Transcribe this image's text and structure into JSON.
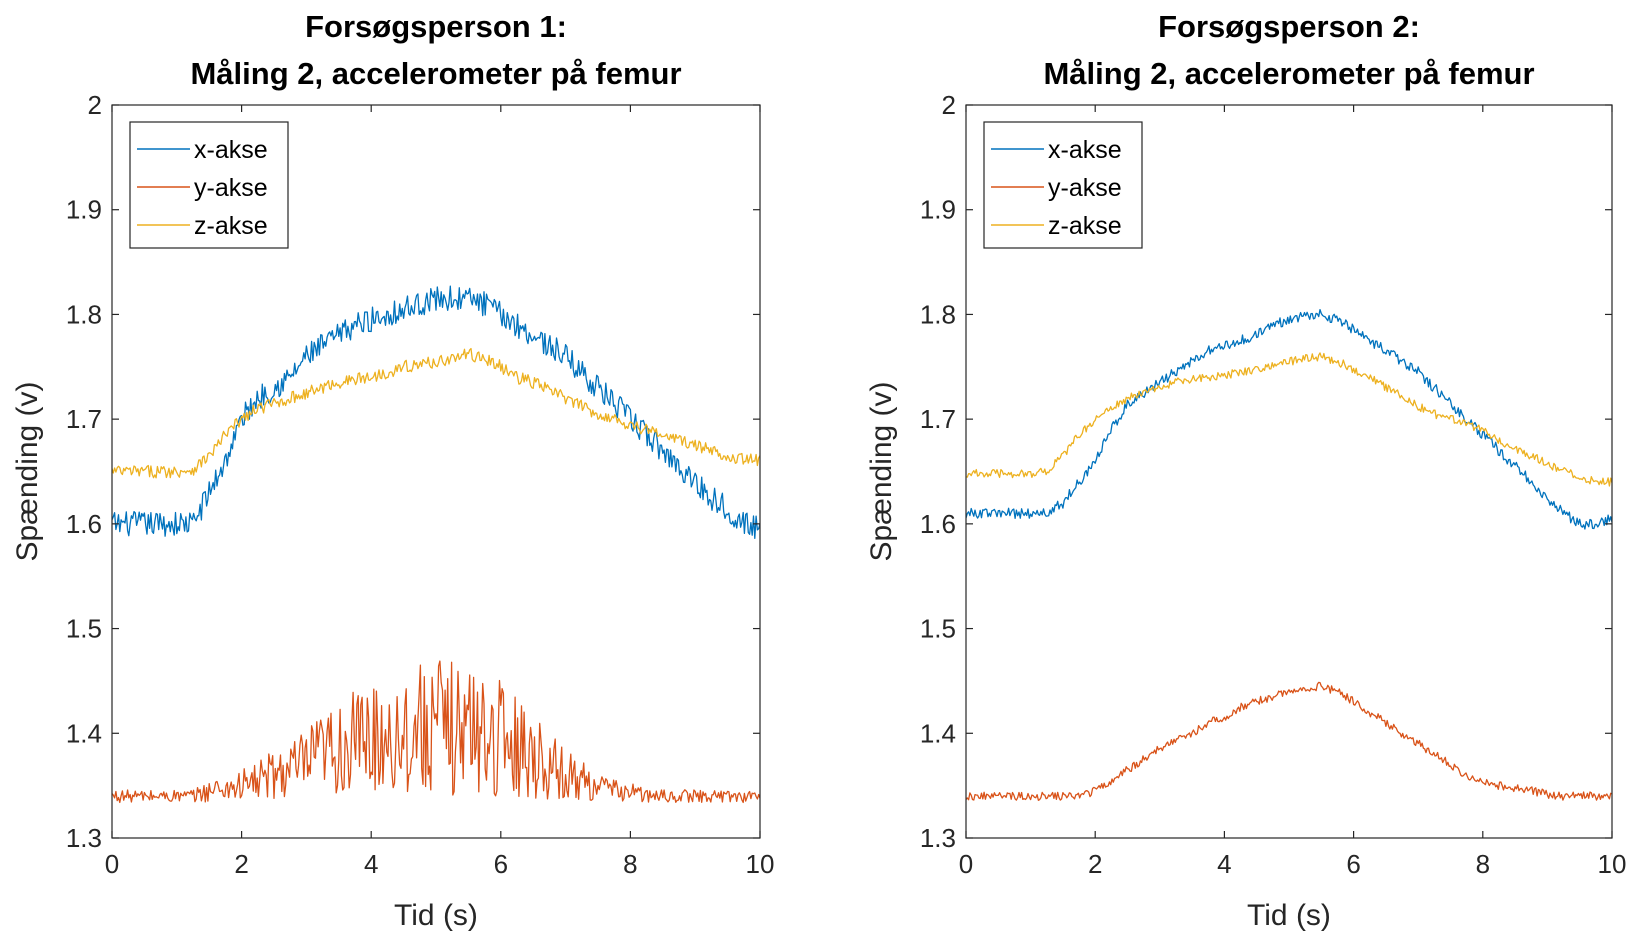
{
  "chart_data": [
    {
      "type": "line",
      "title": [
        "Forsøgsperson 1:",
        "Måling 2, accelerometer på femur"
      ],
      "xlabel": "Tid (s)",
      "ylabel": "Spænding (v)",
      "xlim": [
        0,
        10
      ],
      "ylim": [
        1.3,
        2
      ],
      "xticks": [
        0,
        2,
        4,
        6,
        8,
        10
      ],
      "yticks": [
        1.3,
        1.4,
        1.5,
        1.6,
        1.7,
        1.8,
        1.9,
        2
      ],
      "grid": false,
      "legend": "top-left",
      "x": [
        0,
        0.25,
        0.5,
        0.75,
        1,
        1.25,
        1.5,
        1.75,
        2,
        2.25,
        2.5,
        2.75,
        3,
        3.25,
        3.5,
        3.75,
        4,
        4.25,
        4.5,
        4.75,
        5,
        5.25,
        5.5,
        5.75,
        6,
        6.25,
        6.5,
        6.75,
        7,
        7.25,
        7.5,
        7.75,
        8,
        8.25,
        8.5,
        8.75,
        9,
        9.25,
        9.5,
        9.75,
        10
      ],
      "series": [
        {
          "name": "x-akse",
          "color": "#0072BD",
          "noise": 0.012,
          "values": [
            1.6,
            1.6,
            1.6,
            1.6,
            1.6,
            1.6,
            1.63,
            1.66,
            1.7,
            1.72,
            1.73,
            1.74,
            1.76,
            1.77,
            1.78,
            1.79,
            1.795,
            1.8,
            1.805,
            1.81,
            1.815,
            1.815,
            1.815,
            1.81,
            1.8,
            1.79,
            1.78,
            1.77,
            1.76,
            1.745,
            1.73,
            1.715,
            1.7,
            1.685,
            1.67,
            1.655,
            1.64,
            1.625,
            1.615,
            1.6,
            1.595
          ]
        },
        {
          "name": "y-akse",
          "color": "#D95319",
          "noise": 0.006,
          "ampNoise": true,
          "values": [
            1.34,
            1.34,
            1.34,
            1.34,
            1.34,
            1.34,
            1.345,
            1.348,
            1.35,
            1.355,
            1.36,
            1.365,
            1.37,
            1.38,
            1.385,
            1.39,
            1.395,
            1.398,
            1.4,
            1.405,
            1.405,
            1.405,
            1.405,
            1.4,
            1.395,
            1.39,
            1.38,
            1.37,
            1.36,
            1.355,
            1.35,
            1.345,
            1.345,
            1.34,
            1.34,
            1.34,
            1.34,
            1.34,
            1.34,
            1.34,
            1.34
          ]
        },
        {
          "name": "z-akse",
          "color": "#EDB120",
          "noise": 0.006,
          "values": [
            1.65,
            1.65,
            1.65,
            1.65,
            1.65,
            1.652,
            1.665,
            1.685,
            1.7,
            1.71,
            1.715,
            1.72,
            1.725,
            1.73,
            1.735,
            1.738,
            1.74,
            1.745,
            1.75,
            1.752,
            1.755,
            1.758,
            1.762,
            1.758,
            1.75,
            1.74,
            1.735,
            1.728,
            1.72,
            1.712,
            1.705,
            1.7,
            1.695,
            1.69,
            1.685,
            1.68,
            1.675,
            1.67,
            1.665,
            1.662,
            1.66
          ]
        }
      ]
    },
    {
      "type": "line",
      "title": [
        "Forsøgsperson 2:",
        "Måling 2, accelerometer på femur"
      ],
      "xlabel": "Tid (s)",
      "ylabel": "Spænding (v)",
      "xlim": [
        0,
        10
      ],
      "ylim": [
        1.3,
        2
      ],
      "xticks": [
        0,
        2,
        4,
        6,
        8,
        10
      ],
      "yticks": [
        1.3,
        1.4,
        1.5,
        1.6,
        1.7,
        1.8,
        1.9,
        2
      ],
      "grid": false,
      "legend": "top-left",
      "x": [
        0,
        0.25,
        0.5,
        0.75,
        1,
        1.25,
        1.5,
        1.75,
        2,
        2.25,
        2.5,
        2.75,
        3,
        3.25,
        3.5,
        3.75,
        4,
        4.25,
        4.5,
        4.75,
        5,
        5.25,
        5.5,
        5.75,
        6,
        6.25,
        6.5,
        6.75,
        7,
        7.25,
        7.5,
        7.75,
        8,
        8.25,
        8.5,
        8.75,
        9,
        9.25,
        9.5,
        9.75,
        10
      ],
      "series": [
        {
          "name": "x-akse",
          "color": "#0072BD",
          "noise": 0.005,
          "values": [
            1.61,
            1.61,
            1.61,
            1.61,
            1.61,
            1.61,
            1.62,
            1.64,
            1.66,
            1.69,
            1.715,
            1.725,
            1.735,
            1.745,
            1.755,
            1.765,
            1.77,
            1.775,
            1.78,
            1.79,
            1.795,
            1.8,
            1.8,
            1.795,
            1.785,
            1.775,
            1.765,
            1.755,
            1.745,
            1.73,
            1.715,
            1.7,
            1.685,
            1.67,
            1.655,
            1.64,
            1.625,
            1.61,
            1.6,
            1.6,
            1.605
          ]
        },
        {
          "name": "y-akse",
          "color": "#D95319",
          "noise": 0.004,
          "values": [
            1.34,
            1.34,
            1.34,
            1.34,
            1.34,
            1.34,
            1.34,
            1.34,
            1.345,
            1.355,
            1.365,
            1.375,
            1.385,
            1.395,
            1.4,
            1.41,
            1.415,
            1.425,
            1.43,
            1.435,
            1.44,
            1.443,
            1.445,
            1.44,
            1.43,
            1.42,
            1.41,
            1.4,
            1.39,
            1.38,
            1.37,
            1.36,
            1.355,
            1.35,
            1.348,
            1.345,
            1.342,
            1.34,
            1.34,
            1.34,
            1.34
          ]
        },
        {
          "name": "z-akse",
          "color": "#EDB120",
          "noise": 0.004,
          "values": [
            1.648,
            1.648,
            1.648,
            1.648,
            1.648,
            1.65,
            1.665,
            1.685,
            1.7,
            1.71,
            1.72,
            1.725,
            1.73,
            1.735,
            1.738,
            1.74,
            1.742,
            1.745,
            1.748,
            1.752,
            1.755,
            1.758,
            1.76,
            1.755,
            1.748,
            1.74,
            1.73,
            1.722,
            1.712,
            1.705,
            1.7,
            1.695,
            1.69,
            1.68,
            1.672,
            1.665,
            1.658,
            1.65,
            1.645,
            1.64,
            1.64
          ]
        }
      ]
    }
  ]
}
